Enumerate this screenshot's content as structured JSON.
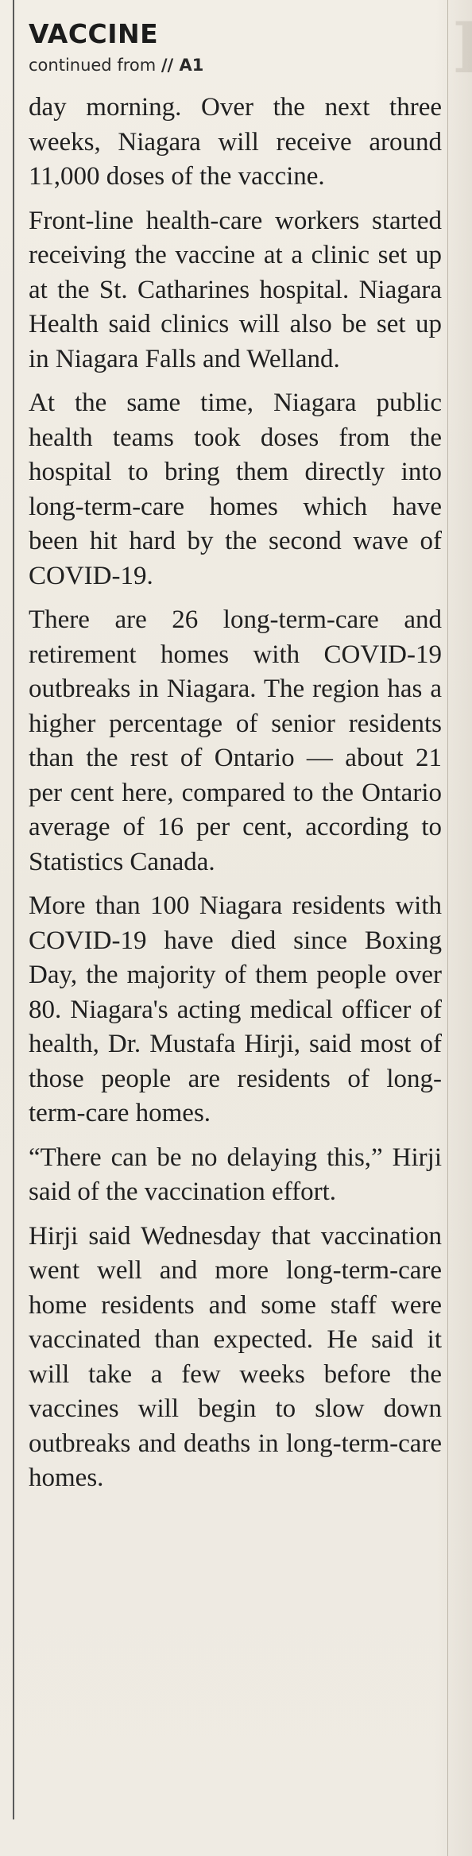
{
  "article": {
    "kicker": "VACCINE",
    "continued_prefix": "continued from ",
    "continued_ref": "// A1",
    "paragraphs": [
      "day morning. Over the next three weeks, Niagara will receive around 11,000 doses of the vaccine.",
      "Front-line health-care workers started receiving the vaccine at a clinic set up at the St. Catharines hospital. Niagara Health said clinics will also be set up in Niagara Falls and Welland.",
      "At the same time, Niagara public health teams took doses from the hospital to bring them directly into long-term-care homes which have been hit hard by the second wave of COVID-19.",
      "There are 26 long-term-care and retirement homes with COVID-19 outbreaks in Niagara. The region has a higher percentage of senior residents than the rest of Ontario — about 21 per cent here, compared to the Ontario average of 16 per cent, according to Statistics Canada.",
      "More than 100 Niagara residents with COVID-19 have died since Boxing Day, the majority of them people over 80. Niagara's acting medical officer of health, Dr. Mustafa Hirji, said most of those people are residents of long-term-care homes.",
      "“There can be no delaying this,” Hirji said of the vaccination effort.",
      "Hirji said Wednesday that vaccination went well and more long-term-care home residents and some staff were vaccinated than expected. He said it will take a few weeks before the vaccines will begin to slow down outbreaks and deaths in long-term-care homes."
    ]
  }
}
